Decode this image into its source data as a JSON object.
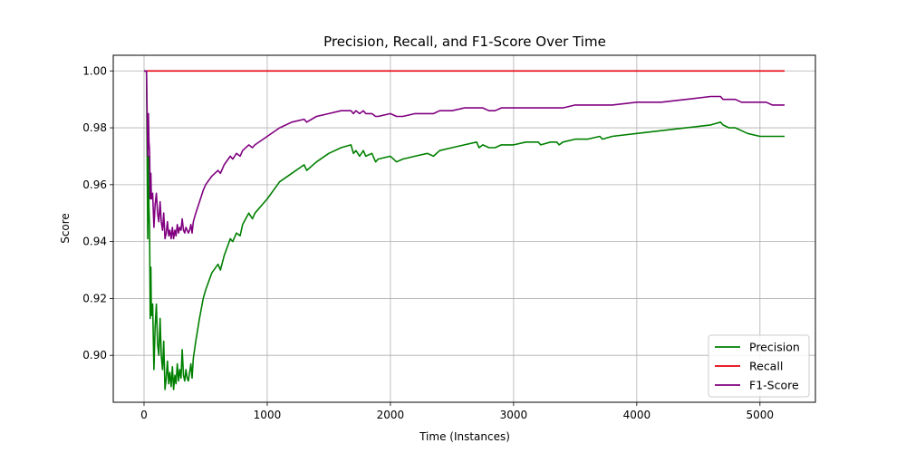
{
  "chart_data": {
    "type": "line",
    "title": "Precision, Recall, and F1-Score Over Time",
    "xlabel": "Time (Instances)",
    "ylabel": "Score",
    "xlim": [
      -250,
      5450
    ],
    "ylim": [
      0.8835,
      1.0055
    ],
    "xticks": [
      0,
      1000,
      2000,
      3000,
      4000,
      5000
    ],
    "yticks": [
      0.9,
      0.92,
      0.94,
      0.96,
      0.98,
      1.0
    ],
    "grid": true,
    "legend_position": "bottom-right",
    "series": [
      {
        "name": "Precision",
        "color": "#008000",
        "x": [
          0,
          20,
          30,
          35,
          40,
          45,
          50,
          55,
          60,
          70,
          80,
          90,
          100,
          110,
          120,
          130,
          140,
          150,
          160,
          170,
          180,
          190,
          200,
          210,
          220,
          230,
          240,
          250,
          260,
          270,
          280,
          290,
          300,
          310,
          320,
          330,
          340,
          350,
          360,
          370,
          380,
          390,
          400,
          420,
          450,
          480,
          500,
          550,
          600,
          620,
          650,
          700,
          720,
          750,
          780,
          800,
          850,
          880,
          900,
          1000,
          1100,
          1200,
          1300,
          1320,
          1400,
          1500,
          1600,
          1680,
          1700,
          1720,
          1750,
          1780,
          1800,
          1850,
          1880,
          1900,
          2000,
          2050,
          2100,
          2200,
          2300,
          2350,
          2400,
          2500,
          2600,
          2700,
          2720,
          2750,
          2800,
          2850,
          2900,
          3000,
          3100,
          3200,
          3220,
          3300,
          3350,
          3370,
          3400,
          3500,
          3600,
          3700,
          3720,
          3800,
          4000,
          4200,
          4400,
          4600,
          4680,
          4700,
          4750,
          4800,
          4850,
          4900,
          5000,
          5050,
          5100,
          5150,
          5200
        ],
        "values": [
          1.0,
          1.0,
          0.941,
          0.97,
          0.952,
          0.945,
          0.913,
          0.931,
          0.914,
          0.918,
          0.895,
          0.91,
          0.918,
          0.904,
          0.9,
          0.913,
          0.9,
          0.895,
          0.905,
          0.888,
          0.892,
          0.898,
          0.89,
          0.894,
          0.889,
          0.896,
          0.888,
          0.893,
          0.89,
          0.897,
          0.891,
          0.895,
          0.892,
          0.902,
          0.893,
          0.891,
          0.895,
          0.892,
          0.891,
          0.894,
          0.897,
          0.892,
          0.899,
          0.905,
          0.913,
          0.92,
          0.923,
          0.929,
          0.932,
          0.93,
          0.935,
          0.941,
          0.94,
          0.943,
          0.942,
          0.946,
          0.95,
          0.948,
          0.95,
          0.955,
          0.961,
          0.964,
          0.967,
          0.965,
          0.968,
          0.971,
          0.973,
          0.974,
          0.971,
          0.972,
          0.97,
          0.972,
          0.97,
          0.971,
          0.968,
          0.969,
          0.97,
          0.968,
          0.969,
          0.97,
          0.971,
          0.97,
          0.972,
          0.973,
          0.974,
          0.975,
          0.973,
          0.974,
          0.973,
          0.973,
          0.974,
          0.974,
          0.975,
          0.975,
          0.974,
          0.975,
          0.975,
          0.974,
          0.975,
          0.976,
          0.976,
          0.977,
          0.976,
          0.977,
          0.978,
          0.979,
          0.98,
          0.981,
          0.982,
          0.981,
          0.98,
          0.98,
          0.979,
          0.978,
          0.977,
          0.977,
          0.977,
          0.977,
          0.977
        ]
      },
      {
        "name": "Recall",
        "color": "#e6000e",
        "x": [
          0,
          5200
        ],
        "values": [
          1.0,
          1.0
        ]
      },
      {
        "name": "F1-Score",
        "color": "#800080",
        "x": [
          0,
          20,
          30,
          35,
          40,
          45,
          50,
          55,
          60,
          70,
          80,
          90,
          100,
          110,
          120,
          130,
          140,
          150,
          160,
          170,
          180,
          190,
          200,
          210,
          220,
          230,
          240,
          250,
          260,
          270,
          280,
          290,
          300,
          310,
          320,
          330,
          340,
          350,
          360,
          370,
          380,
          390,
          400,
          420,
          450,
          480,
          500,
          550,
          600,
          620,
          650,
          700,
          720,
          750,
          780,
          800,
          850,
          880,
          900,
          1000,
          1100,
          1200,
          1300,
          1320,
          1400,
          1500,
          1600,
          1680,
          1700,
          1720,
          1750,
          1780,
          1800,
          1850,
          1880,
          1900,
          2000,
          2050,
          2100,
          2200,
          2300,
          2350,
          2400,
          2500,
          2600,
          2700,
          2720,
          2750,
          2800,
          2850,
          2900,
          3000,
          3100,
          3200,
          3220,
          3300,
          3350,
          3370,
          3400,
          3500,
          3600,
          3700,
          3720,
          3800,
          4000,
          4200,
          4400,
          4600,
          4680,
          4700,
          4750,
          4800,
          4850,
          4900,
          5000,
          5050,
          5100,
          5150,
          5200
        ],
        "values": [
          1.0,
          1.0,
          0.97,
          0.985,
          0.975,
          0.972,
          0.955,
          0.964,
          0.955,
          0.957,
          0.945,
          0.953,
          0.957,
          0.95,
          0.947,
          0.954,
          0.947,
          0.944,
          0.95,
          0.941,
          0.943,
          0.947,
          0.942,
          0.944,
          0.941,
          0.945,
          0.941,
          0.944,
          0.942,
          0.946,
          0.943,
          0.945,
          0.944,
          0.948,
          0.944,
          0.943,
          0.945,
          0.944,
          0.943,
          0.944,
          0.946,
          0.943,
          0.947,
          0.95,
          0.954,
          0.958,
          0.96,
          0.963,
          0.965,
          0.964,
          0.967,
          0.97,
          0.969,
          0.971,
          0.97,
          0.972,
          0.974,
          0.973,
          0.974,
          0.977,
          0.98,
          0.982,
          0.983,
          0.982,
          0.984,
          0.985,
          0.986,
          0.986,
          0.985,
          0.986,
          0.985,
          0.986,
          0.985,
          0.985,
          0.984,
          0.984,
          0.985,
          0.984,
          0.984,
          0.985,
          0.985,
          0.985,
          0.986,
          0.986,
          0.987,
          0.987,
          0.987,
          0.987,
          0.986,
          0.986,
          0.987,
          0.987,
          0.987,
          0.987,
          0.987,
          0.987,
          0.987,
          0.987,
          0.987,
          0.988,
          0.988,
          0.988,
          0.988,
          0.988,
          0.989,
          0.989,
          0.99,
          0.991,
          0.991,
          0.99,
          0.99,
          0.99,
          0.989,
          0.989,
          0.989,
          0.989,
          0.988,
          0.988,
          0.988
        ]
      }
    ]
  }
}
